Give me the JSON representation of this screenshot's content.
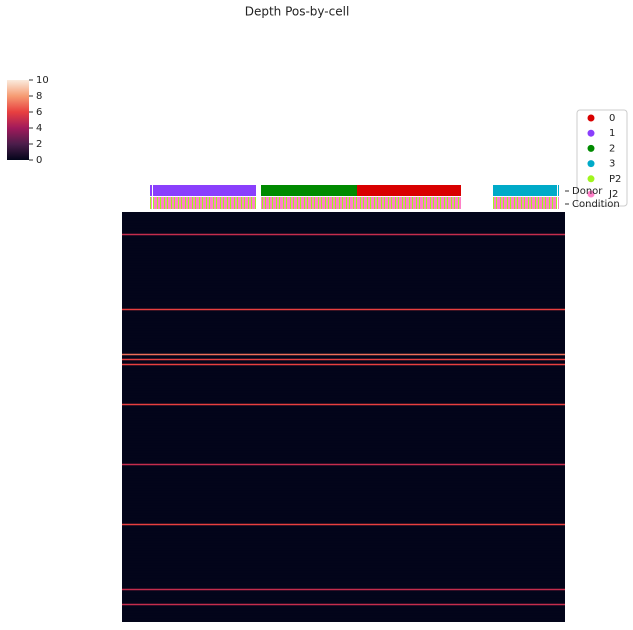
{
  "chart_data": {
    "type": "clustermap",
    "title": "Depth Pos-by-cell",
    "colorbar": {
      "lim": [
        0,
        10
      ],
      "ticks": [
        0,
        2,
        4,
        6,
        8,
        10
      ]
    },
    "legend": [
      {
        "name": "0",
        "color": "#d90000"
      },
      {
        "name": "1",
        "color": "#8a3ffc"
      },
      {
        "name": "2",
        "color": "#008a00"
      },
      {
        "name": "3",
        "color": "#00aac8"
      },
      {
        "name": "P2",
        "color": "#a0f51e"
      },
      {
        "name": "J2",
        "color": "#ff80c8"
      }
    ],
    "row_color_labels": [
      "Donor",
      "Condition"
    ],
    "donor_blocks": [
      {
        "donor": "1",
        "width": 2
      },
      {
        "donor": null,
        "width": 1
      },
      {
        "donor": "1",
        "width": 103
      },
      {
        "donor": null,
        "width": 5
      },
      {
        "donor": "2",
        "width": 96
      },
      {
        "donor": "0",
        "width": 104
      },
      {
        "donor": null,
        "width": 32
      },
      {
        "donor": "3",
        "width": 64
      },
      {
        "donor": null,
        "width": 1
      },
      {
        "donor": "3",
        "width": 1
      }
    ],
    "row_values": [
      0,
      0,
      0,
      0,
      5,
      0,
      0,
      0,
      0,
      0,
      0,
      0,
      0,
      0,
      0,
      0,
      0,
      0,
      0,
      6,
      0,
      0,
      0,
      0,
      0,
      0,
      0,
      0,
      7,
      6,
      6,
      0,
      0,
      0,
      0,
      0,
      0,
      0,
      6,
      0,
      0,
      0,
      0,
      0,
      0,
      0,
      0,
      0,
      0,
      0,
      5,
      0,
      0,
      0,
      0,
      0,
      0,
      0,
      0,
      0,
      0,
      0,
      6,
      0,
      0,
      0,
      0,
      0,
      0,
      0,
      0,
      0,
      0,
      0,
      0,
      5,
      0,
      0,
      5,
      0,
      0,
      0
    ]
  }
}
